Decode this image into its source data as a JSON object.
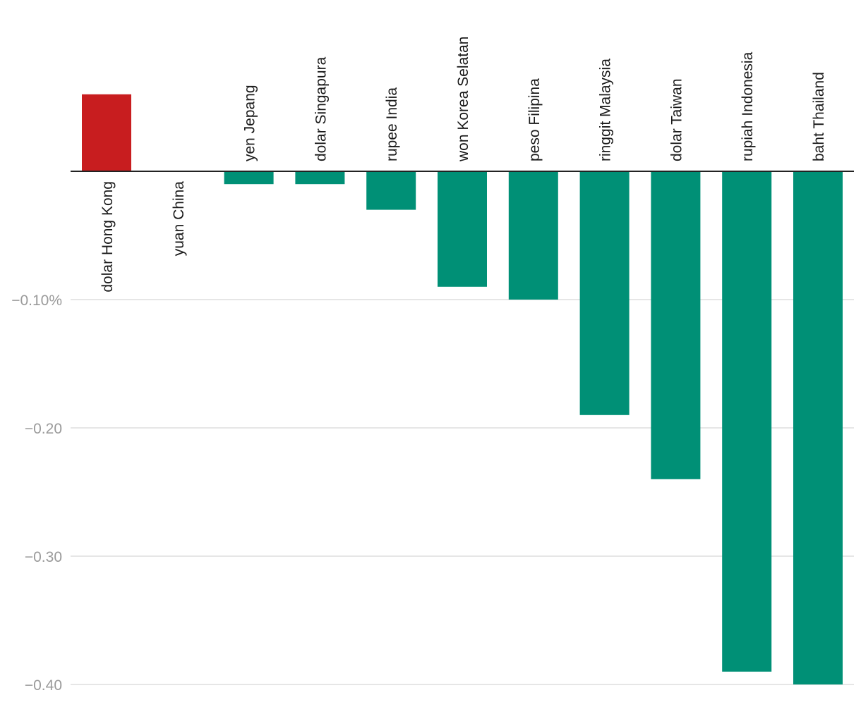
{
  "chart_data": {
    "type": "bar",
    "title": "",
    "xlabel": "",
    "ylabel": "",
    "ylim": [
      -0.4,
      0.06
    ],
    "grid": true,
    "categories": [
      "dolar Hong Kong",
      "yuan China",
      "yen Jepang",
      "dolar Singapura",
      "rupee India",
      "won Korea Selatan",
      "peso Filipina",
      "ringgit Malaysia",
      "dolar Taiwan",
      "rupiah Indonesia",
      "baht Thailand"
    ],
    "values": [
      0.06,
      0.0,
      -0.01,
      -0.01,
      -0.03,
      -0.09,
      -0.1,
      -0.19,
      -0.24,
      -0.39,
      -0.4
    ],
    "y_ticks": [
      {
        "value": -0.1,
        "label": "−0.10%"
      },
      {
        "value": -0.2,
        "label": "−0.20"
      },
      {
        "value": -0.3,
        "label": "−0.30"
      },
      {
        "value": -0.4,
        "label": "−0.40"
      }
    ],
    "colors": {
      "positive": "#c81d1f",
      "negative": "#009076",
      "grid": "#dddddd",
      "axis": "#222222",
      "tick_text": "#9a9a9a",
      "label_text": "#1a1a1a"
    }
  }
}
